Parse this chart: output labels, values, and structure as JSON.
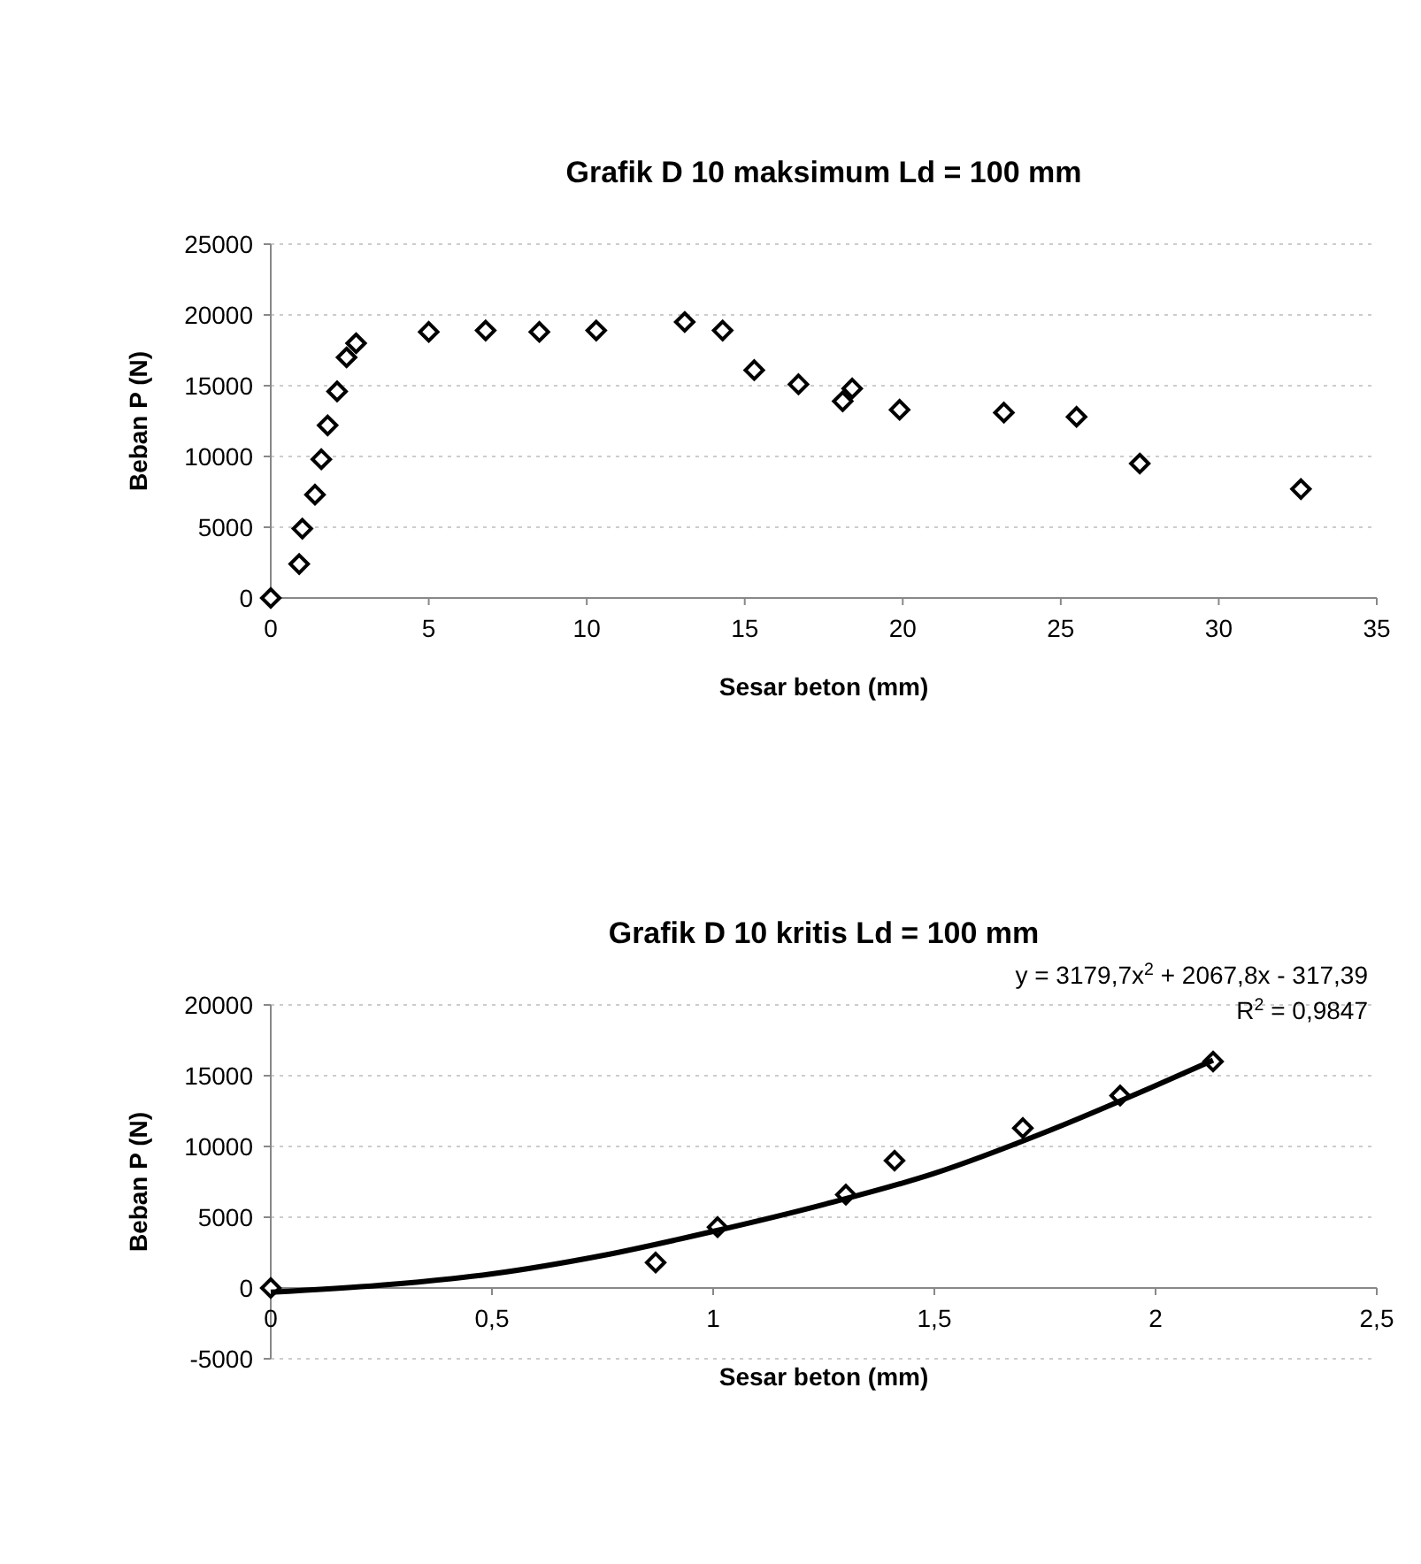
{
  "chart_data": [
    {
      "type": "scatter",
      "title": "Grafik D 10 maksimum Ld = 100 mm",
      "xlabel": "Sesar beton (mm)",
      "ylabel": "Beban P (N)",
      "marker": "diamond",
      "grid": "y",
      "xlim": [
        0,
        35
      ],
      "xticks": [
        0,
        5,
        10,
        15,
        20,
        25,
        30,
        35
      ],
      "ylim": [
        0,
        25000
      ],
      "yticks": [
        0,
        5000,
        10000,
        15000,
        20000,
        25000
      ],
      "series": [
        {
          "color": "#000000",
          "x": [
            0,
            0.9,
            1.0,
            1.4,
            1.6,
            1.8,
            2.1,
            2.4,
            2.7,
            5.0,
            6.8,
            8.5,
            10.3,
            13.1,
            14.3,
            15.3,
            16.7,
            18.1,
            18.4,
            19.9,
            23.2,
            25.5,
            27.5,
            32.6
          ],
          "values": [
            0,
            2400,
            4900,
            7300,
            9800,
            12200,
            14600,
            17000,
            18000,
            18800,
            18900,
            18800,
            18900,
            19500,
            18900,
            16100,
            15100,
            13900,
            14800,
            13300,
            13100,
            12800,
            9500,
            7700
          ]
        }
      ]
    },
    {
      "type": "scatter",
      "title": "Grafik D 10 kritis Ld = 100 mm",
      "xlabel": "Sesar beton (mm)",
      "ylabel": "Beban P (N)",
      "marker": "diamond",
      "grid": "y",
      "xlim": [
        0,
        2.5
      ],
      "xticks": [
        0,
        {
          "value": 0.5,
          "label": "0,5"
        },
        1,
        {
          "value": 1.5,
          "label": "1,5"
        },
        2,
        {
          "value": 2.5,
          "label": "2,5"
        }
      ],
      "ylim": [
        -5000,
        20000
      ],
      "yticks": [
        -5000,
        0,
        5000,
        10000,
        15000,
        20000
      ],
      "annotations": [
        "y = 3179,7x$^{2}$ + 2067,8x - 317,39",
        "R$^{2}$ = 0,9847"
      ],
      "series": [
        {
          "color": "#000000",
          "x": [
            0,
            0.87,
            1.01,
            1.3,
            1.41,
            1.7,
            1.92,
            2.13
          ],
          "values": [
            0,
            1800,
            4300,
            6600,
            9000,
            11300,
            13600,
            16000
          ]
        },
        {
          "type": "line",
          "marker": "none",
          "color": "#000000",
          "x": [
            0,
            0.25,
            0.5,
            0.75,
            1.0,
            1.25,
            1.5,
            1.75,
            2.0,
            2.13
          ],
          "values": [
            -300,
            200,
            1000,
            2300,
            4000,
            5900,
            8100,
            11000,
            14300,
            16100
          ]
        }
      ]
    }
  ]
}
